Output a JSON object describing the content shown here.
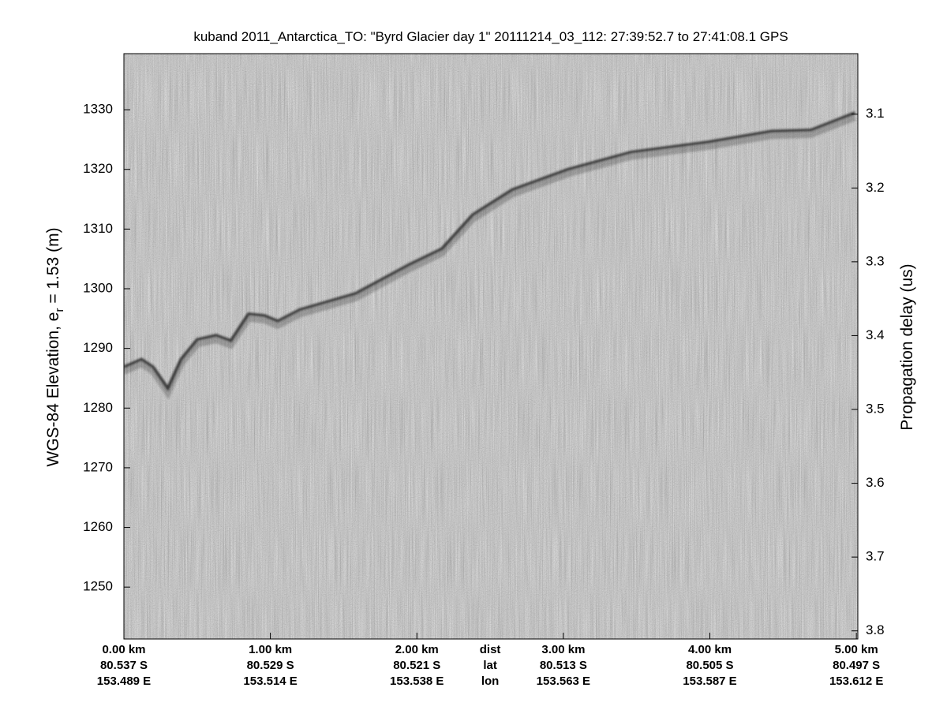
{
  "chart_data": {
    "type": "echogram",
    "title": "kuband 2011_Antarctica_TO: \"Byrd Glacier day 1\"  20111214_03_112: 27:39:52.7 to 27:41:08.1 GPS",
    "ylabel": [
      "WGS-84 Elevation, e",
      "r",
      " = 1.53 (m)"
    ],
    "y2label": "Propagation delay (us)",
    "xlim": [
      0,
      5.01
    ],
    "xticks": [
      {
        "value": 0,
        "label": "0.00 km"
      },
      {
        "value": 1,
        "label": "1.00 km"
      },
      {
        "value": 2,
        "label": "2.00 km"
      },
      {
        "value": 3,
        "label": "3.00 km"
      },
      {
        "value": 4,
        "label": "4.00 km"
      },
      {
        "value": 5,
        "label": "5.00 km"
      }
    ],
    "lat_labels": [
      "80.537 S",
      "80.529 S",
      "80.521 S",
      "80.513 S",
      "80.505 S",
      "80.497 S"
    ],
    "lon_labels": [
      "153.489 E",
      "153.514 E",
      "153.538 E",
      "153.563 E",
      "153.587 E",
      "153.612 E"
    ],
    "row_labels": [
      "dist",
      "lat",
      "lon"
    ],
    "ylim": [
      1241.3,
      1339.4
    ],
    "yticks": [
      1250,
      1260,
      1270,
      1280,
      1290,
      1300,
      1310,
      1320,
      1330
    ],
    "y2lim": [
      3.811,
      3.018
    ],
    "y2ticks": [
      3.1,
      3.2,
      3.3,
      3.4,
      3.5,
      3.6,
      3.7,
      3.8
    ],
    "surface": {
      "color": "#1a1a1a",
      "x": [
        0,
        0.12,
        0.2,
        0.3,
        0.39,
        0.5,
        0.63,
        0.73,
        0.85,
        0.96,
        1.05,
        1.2,
        1.58,
        1.95,
        2.17,
        2.38,
        2.65,
        3.03,
        3.46,
        3.99,
        4.42,
        4.69,
        4.99
      ],
      "values": [
        1286.9,
        1288.2,
        1286.9,
        1283.3,
        1288.2,
        1291.5,
        1292.2,
        1291.3,
        1295.8,
        1295.5,
        1294.6,
        1296.5,
        1299.2,
        1304.1,
        1306.7,
        1312.4,
        1316.6,
        1320.0,
        1322.9,
        1324.6,
        1326.4,
        1326.6,
        1329.5
      ]
    }
  }
}
